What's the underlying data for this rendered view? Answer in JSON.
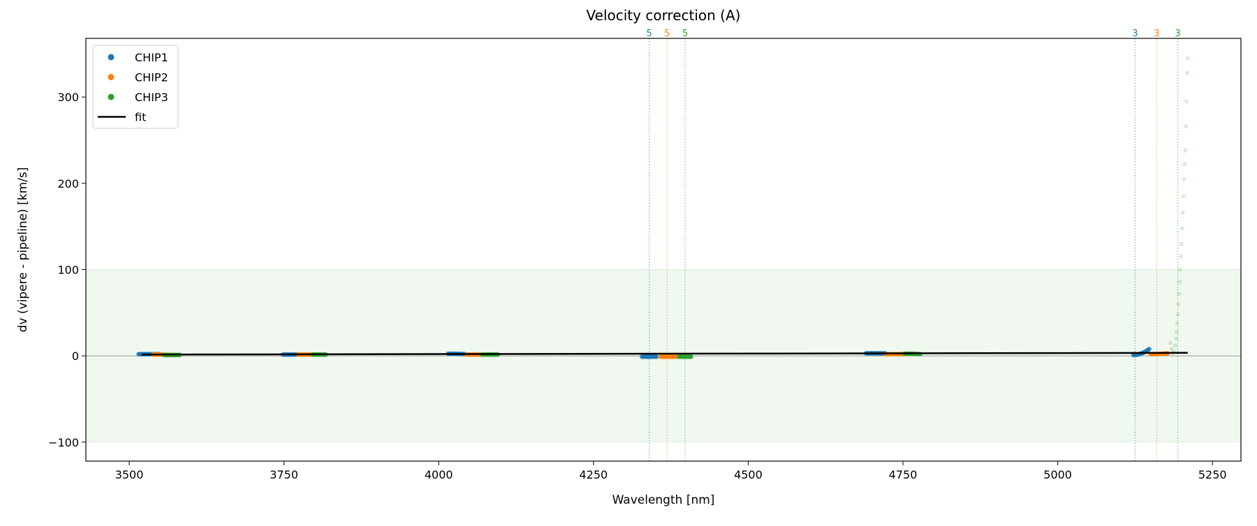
{
  "chart_data": {
    "type": "scatter",
    "title": "Velocity correction (A)",
    "xlabel": "Wavelength [nm]",
    "ylabel": "dv (vipere - pipeline) [km/s]",
    "xlim": [
      3430,
      5296
    ],
    "ylim": [
      -122,
      368
    ],
    "xticks": [
      3500,
      3750,
      4000,
      4250,
      4500,
      4750,
      5000,
      5250
    ],
    "yticks": [
      -100,
      0,
      100,
      200,
      300
    ],
    "xtick_labels": [
      "3500",
      "3750",
      "4000",
      "4250",
      "4500",
      "4750",
      "5000",
      "5250"
    ],
    "ytick_labels": [
      "−100",
      "0",
      "100",
      "200",
      "300"
    ],
    "band": [
      -100,
      100
    ],
    "band_color": "#2ca02c",
    "legend": {
      "position": "top-left",
      "entries": [
        "CHIP1",
        "CHIP2",
        "CHIP3",
        "fit"
      ]
    },
    "series": [
      {
        "name": "CHIP1",
        "color": "#1f77b4",
        "segments": [
          {
            "x": [
              3515,
              3550
            ],
            "y": [
              2,
              2
            ]
          },
          {
            "x": [
              3748,
              3772
            ],
            "y": [
              1.5,
              1.5
            ]
          },
          {
            "x": [
              4015,
              4042
            ],
            "y": [
              2.5,
              2
            ]
          },
          {
            "x": [
              4328,
              4352
            ],
            "y": [
              -1,
              -1
            ]
          },
          {
            "x": [
              4690,
              4722
            ],
            "y": [
              3,
              3
            ]
          },
          {
            "x": [
              5122,
              5148
            ],
            "y": [
              1,
              8
            ]
          }
        ]
      },
      {
        "name": "CHIP2",
        "color": "#ff7f0e",
        "segments": [
          {
            "x": [
              3538,
              3566
            ],
            "y": [
              1.5,
              1
            ]
          },
          {
            "x": [
              3772,
              3798
            ],
            "y": [
              1.5,
              1.5
            ]
          },
          {
            "x": [
              4044,
              4070
            ],
            "y": [
              1.5,
              1.5
            ]
          },
          {
            "x": [
              4358,
              4386
            ],
            "y": [
              -1,
              -1
            ]
          },
          {
            "x": [
              4722,
              4752
            ],
            "y": [
              2,
              2
            ]
          },
          {
            "x": [
              5150,
              5178
            ],
            "y": [
              2,
              3
            ]
          }
        ]
      },
      {
        "name": "CHIP3",
        "color": "#2ca02c",
        "segments": [
          {
            "x": [
              3556,
              3582
            ],
            "y": [
              1,
              1
            ]
          },
          {
            "x": [
              3796,
              3818
            ],
            "y": [
              1.5,
              1.5
            ]
          },
          {
            "x": [
              4070,
              4096
            ],
            "y": [
              1.5,
              1.5
            ]
          },
          {
            "x": [
              4388,
              4408
            ],
            "y": [
              -1,
              -1
            ]
          },
          {
            "x": [
              4752,
              4778
            ],
            "y": [
              2.5,
              2
            ]
          }
        ],
        "outliers": {
          "x": [
            5182,
            5184,
            5186,
            5188,
            5190,
            5191,
            5192,
            5193,
            5194,
            5195,
            5196,
            5197,
            5198,
            5199,
            5200,
            5201,
            5202,
            5203,
            5204,
            5205,
            5206,
            5207,
            5208,
            5209,
            5210
          ],
          "y": [
            15,
            8,
            3,
            5,
            12,
            20,
            28,
            38,
            48,
            60,
            72,
            86,
            100,
            115,
            130,
            148,
            166,
            185,
            205,
            222,
            238,
            266,
            295,
            328,
            345
          ]
        }
      }
    ],
    "fit": {
      "name": "fit",
      "x": [
        3520,
        5210
      ],
      "y": [
        1.5,
        3.5
      ]
    },
    "markers": [
      {
        "x": 4340,
        "label": "5",
        "color": "#1f77b4"
      },
      {
        "x": 4369,
        "label": "5",
        "color": "#ff7f0e"
      },
      {
        "x": 4398,
        "label": "5",
        "color": "#2ca02c"
      },
      {
        "x": 5125,
        "label": "3",
        "color": "#1f77b4"
      },
      {
        "x": 5160,
        "label": "3",
        "color": "#ff7f0e"
      },
      {
        "x": 5194,
        "label": "3",
        "color": "#2ca02c"
      }
    ]
  }
}
